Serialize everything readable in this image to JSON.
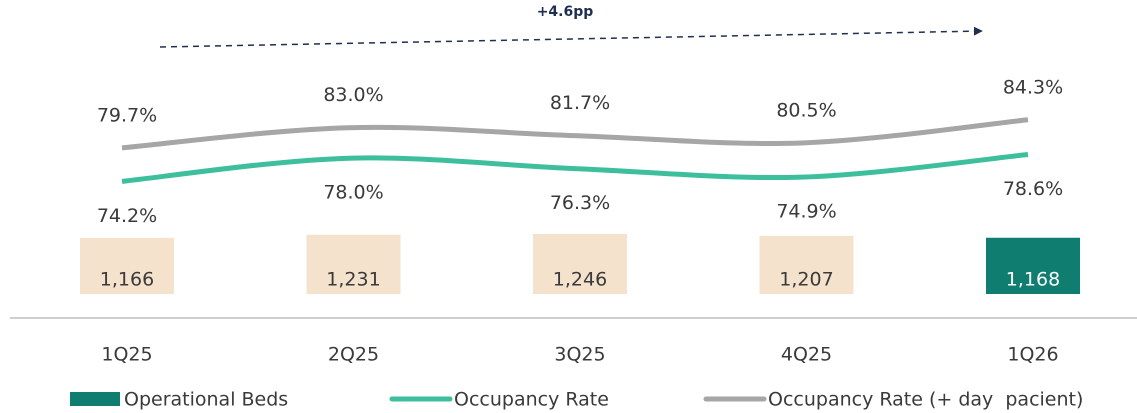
{
  "chart_data": {
    "type": "combo",
    "annotation": "+4.6pp",
    "categories": [
      "1Q25",
      "2Q25",
      "3Q25",
      "4Q25",
      "1Q26"
    ],
    "series": [
      {
        "name": "Operational Beds",
        "type": "bar",
        "color": "#0f7d6f",
        "colors": [
          "#f5e2cc",
          "#f5e2cc",
          "#f5e2cc",
          "#f5e2cc",
          "#0f7d6f"
        ],
        "values": [
          1166,
          1231,
          1246,
          1207,
          1168
        ],
        "value_labels": [
          "1,166",
          "1,231",
          "1,246",
          "1,207",
          "1,168"
        ]
      },
      {
        "name": "Occupancy Rate",
        "type": "line",
        "color": "#3dbf9e",
        "values": [
          74.2,
          78.0,
          76.3,
          74.9,
          78.6
        ],
        "value_labels": [
          "74.2%",
          "78.0%",
          "76.3%",
          "74.9%",
          "78.6%"
        ]
      },
      {
        "name": "Occupancy Rate (+ day  pacient)",
        "type": "line",
        "color": "#a6a6a6",
        "values": [
          79.7,
          83.0,
          81.7,
          80.5,
          84.3
        ],
        "value_labels": [
          "79.7%",
          "83.0%",
          "81.7%",
          "80.5%",
          "84.3%"
        ]
      }
    ]
  }
}
